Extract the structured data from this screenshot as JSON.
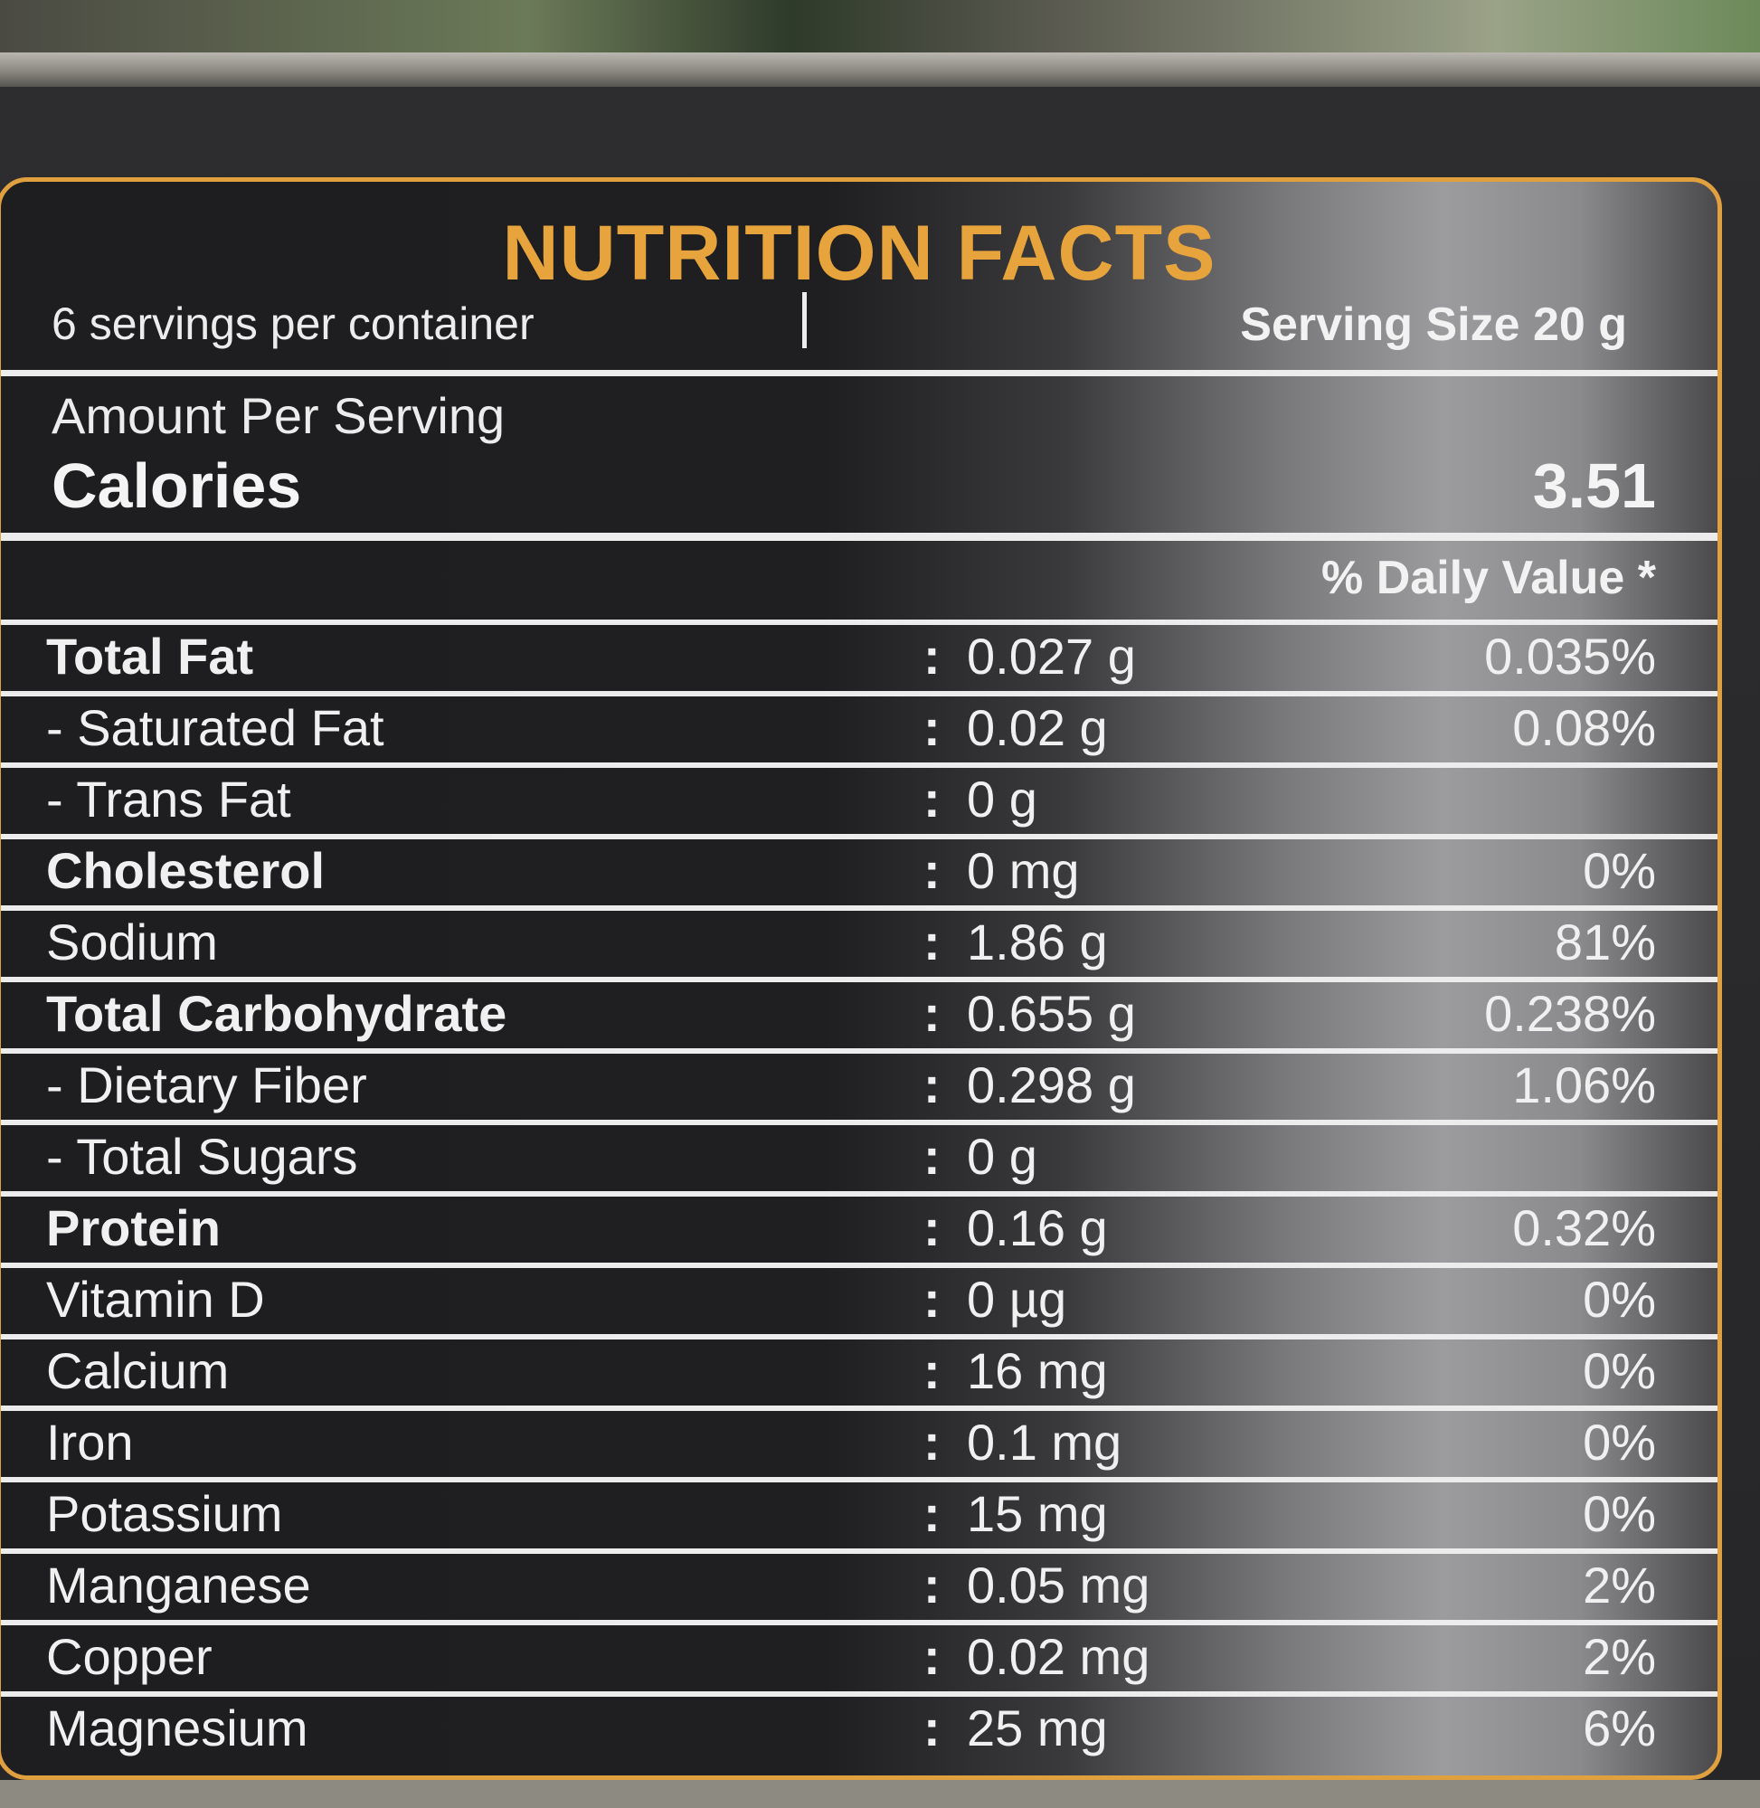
{
  "label": {
    "title": "NUTRITION FACTS",
    "servings_per_container": "6 servings per container",
    "serving_size": "Serving Size 20 g",
    "amount_per_serving": "Amount Per Serving",
    "calories_label": "Calories",
    "calories_value": "3.51",
    "daily_value_header": "% Daily Value *",
    "colon": ":",
    "nutrients": [
      {
        "name": "Total Fat",
        "amount": "0.027 g",
        "dv": "0.035%",
        "bold": true
      },
      {
        "name": "- Saturated Fat",
        "amount": "0.02 g",
        "dv": "0.08%",
        "bold": false
      },
      {
        "name": "- Trans Fat",
        "amount": "0 g",
        "dv": "",
        "bold": false
      },
      {
        "name": "Cholesterol",
        "amount": "0 mg",
        "dv": "0%",
        "bold": true
      },
      {
        "name": "Sodium",
        "amount": "1.86 g",
        "dv": "81%",
        "bold": false
      },
      {
        "name": "Total Carbohydrate",
        "amount": "0.655 g",
        "dv": "0.238%",
        "bold": true
      },
      {
        "name": "- Dietary Fiber",
        "amount": "0.298 g",
        "dv": "1.06%",
        "bold": false
      },
      {
        "name": "- Total Sugars",
        "amount": "0 g",
        "dv": "",
        "bold": false
      },
      {
        "name": "Protein",
        "amount": "0.16 g",
        "dv": "0.32%",
        "bold": true
      },
      {
        "name": "Vitamin D",
        "amount": "0 µg",
        "dv": "0%",
        "bold": false
      },
      {
        "name": "Calcium",
        "amount": "16 mg",
        "dv": "0%",
        "bold": false
      },
      {
        "name": "Iron",
        "amount": "0.1 mg",
        "dv": "0%",
        "bold": false
      },
      {
        "name": "Potassium",
        "amount": "15 mg",
        "dv": "0%",
        "bold": false
      },
      {
        "name": "Manganese",
        "amount": "0.05 mg",
        "dv": "2%",
        "bold": false
      },
      {
        "name": "Copper",
        "amount": "0.02 mg",
        "dv": "2%",
        "bold": false
      },
      {
        "name": "Magnesium",
        "amount": "25 mg",
        "dv": "6%",
        "bold": false
      }
    ]
  },
  "colors": {
    "border_accent": "#e0a040",
    "title": "#e8a43c",
    "panel_dark": "#1e1e20",
    "text": "#f0f0f0"
  }
}
